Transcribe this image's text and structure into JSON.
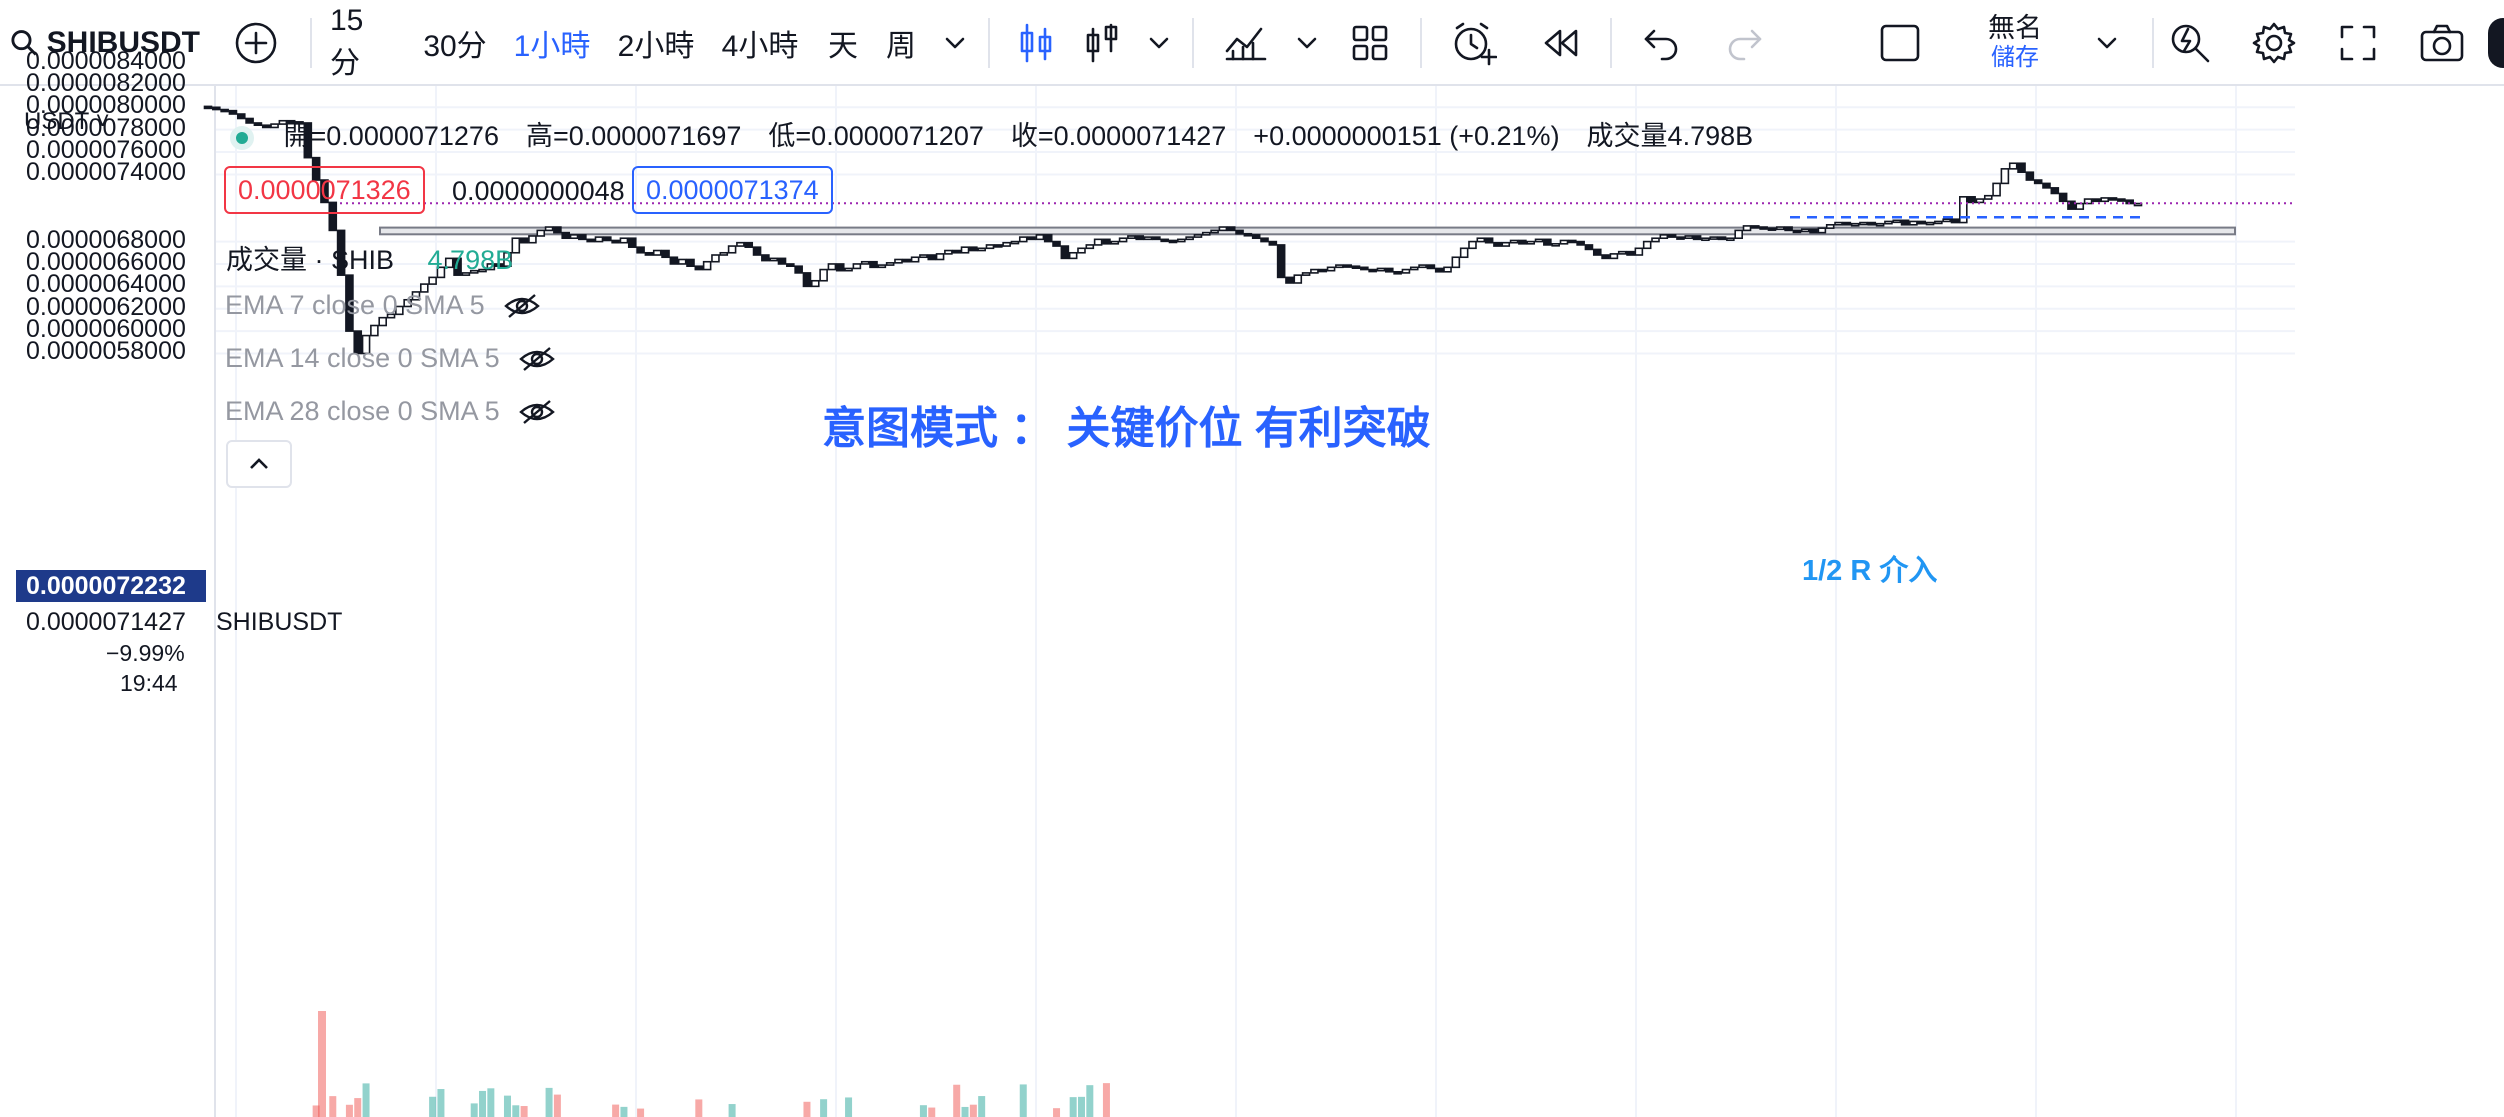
{
  "toolbar": {
    "symbol": "SHIBUSDT",
    "timeframes": [
      "15分",
      "30分",
      "1小時",
      "2小時",
      "4小時",
      "天",
      "周"
    ],
    "active_timeframe": "1小時",
    "layout_title": "無名",
    "layout_subtitle": "儲存",
    "icons": [
      "search-icon",
      "add-symbol-icon",
      "timeframe-dropdown-icon",
      "candles-icon",
      "bars-icon",
      "chart-type-dropdown-icon",
      "indicators-icon",
      "indicators-dropdown-icon",
      "templates-icon",
      "alert-icon",
      "replay-icon",
      "undo-icon",
      "redo-icon",
      "layout-icon",
      "layout-dropdown-icon",
      "quick-search-icon",
      "settings-icon",
      "fullscreen-icon",
      "screenshot-icon"
    ]
  },
  "legend": {
    "ohlc": "開=0.0000071276　高=0.0000071697　低=0.0000071207　收=0.0000071427　+0.0000000151 (+0.21%)　成交量4.798B",
    "sell_price": "0.0000071326",
    "spread": "0.0000000048",
    "buy_price": "0.0000071374",
    "volume_label": "成交量 · SHIB",
    "volume_value": "4.798B",
    "indicators": [
      "EMA 7 close 0 SMA 5",
      "EMA 14 close 0 SMA 5",
      "EMA 28 close 0 SMA 5"
    ]
  },
  "price_axis": {
    "currency": "USDT",
    "ticks": [
      "0.0000084000",
      "0.0000082000",
      "0.0000080000",
      "0.0000078000",
      "0.0000076000",
      "0.0000074000",
      "0.0000068000",
      "0.0000066000",
      "0.0000064000",
      "0.0000062000",
      "0.0000060000",
      "0.0000058000"
    ],
    "crosshair_price": "0.0000072232",
    "last_price": "0.0000071427",
    "change_pct": "−9.99%",
    "countdown": "19:44",
    "symbol_tag": "SHIBUSDT"
  },
  "annotations": {
    "title": "意图模式 ： 关键价位 有利突破",
    "entry_label": "1/2 R 介入"
  },
  "colors": {
    "accent": "#2962ff",
    "annotation_blue": "#2962ff",
    "entry_blue": "#2196f3",
    "up_volume": "#26a69a",
    "down_volume": "#ef5350",
    "last_price_line": "#9c27b0",
    "sell_box": "#f23645",
    "buy_box": "#2962ff"
  },
  "chart_data": {
    "type": "candlestick",
    "symbol": "SHIBUSDT",
    "interval": "1小時",
    "y_unit": "USDT",
    "ylim": [
      5.7e-06,
      8.6e-06
    ],
    "ohlc_last": {
      "open": 7.1276e-06,
      "high": 7.1697e-06,
      "low": 7.1207e-06,
      "close": 7.1427e-06,
      "volume": "4.798B"
    },
    "key_level_zone": [
      6.865e-06,
      6.925e-06
    ],
    "entry_line": 7.2232e-06,
    "closes": [
      8e-06,
      7.98e-06,
      7.97e-06,
      7.94e-06,
      7.9e-06,
      7.86e-06,
      7.84e-06,
      7.82e-06,
      7.85e-06,
      7.88e-06,
      7.87e-06,
      7.86e-06,
      7.55e-06,
      7.35e-06,
      7.15e-06,
      6.9e-06,
      6.5e-06,
      6e-06,
      5.8e-06,
      5.96e-06,
      6.05e-06,
      6.12e-06,
      6.15e-06,
      6.22e-06,
      6.28e-06,
      6.35e-06,
      6.42e-06,
      6.48e-06,
      6.57e-06,
      6.65e-06,
      6.5e-06,
      6.52e-06,
      6.54e-06,
      6.55e-06,
      6.6e-06,
      6.58e-06,
      6.7e-06,
      6.83e-06,
      6.79e-06,
      6.85e-06,
      6.9e-06,
      6.93e-06,
      6.88e-06,
      6.83e-06,
      6.86e-06,
      6.82e-06,
      6.8e-06,
      6.84e-06,
      6.81e-06,
      6.79e-06,
      6.83e-06,
      6.75e-06,
      6.7e-06,
      6.68e-06,
      6.72e-06,
      6.66e-06,
      6.6e-06,
      6.64e-06,
      6.58e-06,
      6.55e-06,
      6.62e-06,
      6.68e-06,
      6.7e-06,
      6.76e-06,
      6.79e-06,
      6.75e-06,
      6.68e-06,
      6.63e-06,
      6.65e-06,
      6.6e-06,
      6.58e-06,
      6.52e-06,
      6.4e-06,
      6.45e-06,
      6.55e-06,
      6.6e-06,
      6.54e-06,
      6.56e-06,
      6.6e-06,
      6.62e-06,
      6.57e-06,
      6.59e-06,
      6.61e-06,
      6.64e-06,
      6.62e-06,
      6.66e-06,
      6.68e-06,
      6.64e-06,
      6.69e-06,
      6.72e-06,
      6.7e-06,
      6.75e-06,
      6.72e-06,
      6.74e-06,
      6.77e-06,
      6.76e-06,
      6.79e-06,
      6.8e-06,
      6.84e-06,
      6.82e-06,
      6.86e-06,
      6.8e-06,
      6.76e-06,
      6.65e-06,
      6.7e-06,
      6.74e-06,
      6.77e-06,
      6.82e-06,
      6.78e-06,
      6.8e-06,
      6.83e-06,
      6.85e-06,
      6.82e-06,
      6.84e-06,
      6.82e-06,
      6.81e-06,
      6.8e-06,
      6.82e-06,
      6.84e-06,
      6.86e-06,
      6.88e-06,
      6.9e-06,
      6.93e-06,
      6.9e-06,
      6.87e-06,
      6.86e-06,
      6.83e-06,
      6.8e-06,
      6.77e-06,
      6.48e-06,
      6.43e-06,
      6.5e-06,
      6.52e-06,
      6.55e-06,
      6.54e-06,
      6.57e-06,
      6.59e-06,
      6.58e-06,
      6.57e-06,
      6.55e-06,
      6.54e-06,
      6.56e-06,
      6.53e-06,
      6.52e-06,
      6.55e-06,
      6.57e-06,
      6.59e-06,
      6.56e-06,
      6.53e-06,
      6.57e-06,
      6.66e-06,
      6.74e-06,
      6.8e-06,
      6.83e-06,
      6.79e-06,
      6.76e-06,
      6.79e-06,
      6.81e-06,
      6.78e-06,
      6.8e-06,
      6.82e-06,
      6.77e-06,
      6.78e-06,
      6.81e-06,
      6.8e-06,
      6.77e-06,
      6.73e-06,
      6.68e-06,
      6.65e-06,
      6.69e-06,
      6.71e-06,
      6.68e-06,
      6.74e-06,
      6.8e-06,
      6.83e-06,
      6.86e-06,
      6.84e-06,
      6.83e-06,
      6.85e-06,
      6.82e-06,
      6.83e-06,
      6.84e-06,
      6.82e-06,
      6.83e-06,
      6.9e-06,
      6.94e-06,
      6.93e-06,
      6.92e-06,
      6.91e-06,
      6.93e-06,
      6.9e-06,
      6.89e-06,
      6.91e-06,
      6.88e-06,
      6.92e-06,
      6.95e-06,
      6.97e-06,
      6.95e-06,
      6.96e-06,
      6.97e-06,
      6.95e-06,
      6.96e-06,
      6.98e-06,
      6.99e-06,
      6.95e-06,
      6.98e-06,
      6.96e-06,
      6.97e-06,
      6.98e-06,
      7e-06,
      6.97e-06,
      7.2e-06,
      7.15e-06,
      7.18e-06,
      7.21e-06,
      7.32e-06,
      7.45e-06,
      7.5e-06,
      7.42e-06,
      7.35e-06,
      7.32e-06,
      7.28e-06,
      7.23e-06,
      7.16e-06,
      7.09e-06,
      7.14e-06,
      7.18e-06,
      7.16e-06,
      7.19e-06,
      7.18e-06,
      7.17e-06,
      7.14e-06,
      7.14e-06
    ]
  }
}
